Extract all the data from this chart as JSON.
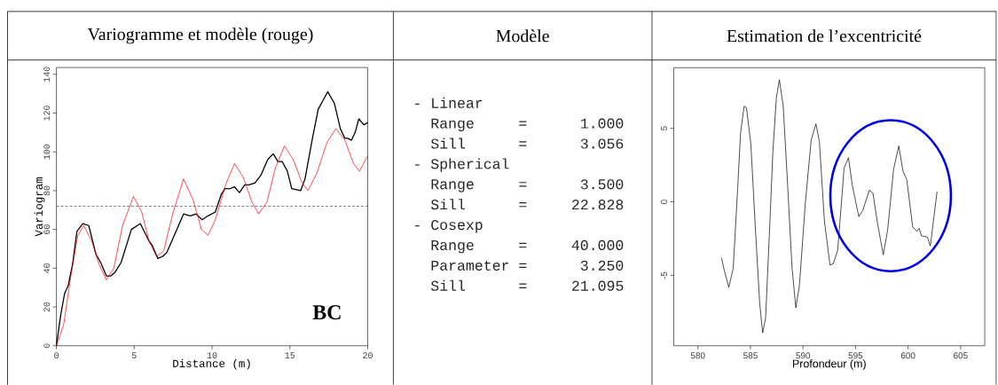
{
  "chart_data": [
    {
      "type": "line",
      "title": "Variogramme et modèle (rouge)",
      "xlabel": "Distance (m)",
      "ylabel": "Variogram",
      "xlim": [
        0,
        20
      ],
      "ylim": [
        0,
        143.5
      ],
      "xticks": [
        0,
        5,
        10,
        15,
        20
      ],
      "yticks": [
        0,
        20,
        40,
        60,
        80,
        100,
        120,
        140
      ],
      "marker": "none",
      "series": [
        {
          "color": "#000000",
          "x": [
            0,
            0.28,
            0.53,
            0.76,
            1.04,
            1.32,
            1.7,
            2.08,
            2.55,
            2.84,
            3.21,
            3.5,
            3.78,
            4.16,
            4.82,
            5.39,
            5.95,
            6.14,
            6.52,
            6.81,
            7.09,
            7.47,
            8.17,
            8.6,
            8.98,
            9.36,
            9.74,
            10.21,
            10.59,
            10.83,
            11.15,
            11.44,
            11.76,
            12.1,
            12.38,
            12.76,
            13.14,
            13.57,
            13.93,
            14.23,
            14.5,
            14.84,
            15.12,
            15.69,
            15.97,
            16.45,
            16.82,
            17.43,
            17.86,
            18.24,
            18.53,
            18.71,
            18.96,
            19.19,
            19.43,
            19.75,
            20
          ],
          "values": [
            0,
            16,
            27,
            31,
            42,
            59,
            63,
            62,
            47,
            43,
            36,
            36,
            38,
            43,
            60,
            63,
            54,
            52,
            45,
            46,
            48,
            55,
            68,
            67,
            68,
            65,
            67,
            69,
            78,
            81,
            81,
            82,
            79,
            83,
            83,
            84,
            88,
            96,
            99,
            95,
            95,
            90,
            81,
            80,
            86,
            107,
            122,
            131,
            125,
            112,
            107,
            107,
            106,
            110,
            117,
            114,
            115
          ]
        },
        {
          "color": "#ff0000",
          "x": [
            0,
            0.47,
            0.95,
            1.38,
            1.76,
            2.27,
            2.74,
            3.21,
            3.69,
            4.25,
            4.95,
            5.48,
            5.95,
            6.43,
            6.9,
            7.47,
            8.17,
            8.79,
            9.32,
            9.74,
            10.21,
            10.87,
            11.44,
            12.0,
            12.57,
            12.99,
            13.52,
            14.08,
            14.65,
            15.22,
            15.78,
            16.16,
            16.73,
            17.39,
            17.96,
            18.53,
            19.09,
            19.47,
            20
          ],
          "values": [
            0,
            11,
            37,
            57,
            62,
            54,
            42,
            34,
            40,
            62,
            77,
            69,
            54,
            46,
            49,
            68,
            86,
            75,
            60,
            57,
            65,
            83,
            94,
            87,
            74,
            68,
            74,
            92,
            103,
            96,
            84,
            80,
            89,
            105,
            112,
            106,
            94,
            90,
            98
          ]
        }
      ],
      "ref_lines": [
        {
          "axis": "y",
          "value": 72,
          "color": "#404040",
          "line_style": "dashed"
        }
      ],
      "annotations": [
        "BC"
      ]
    },
    {
      "type": "other",
      "title": "Modèle",
      "annotations": [
        "- Linear",
        "  Range     =      1.000",
        "  Sill      =      3.056",
        "- Spherical",
        "  Range     =      3.500",
        "  Sill      =     22.828",
        "- Cosexp",
        "  Range     =     40.000",
        "  Parameter =      3.250",
        "  Sill      =     21.095"
      ]
    },
    {
      "type": "line",
      "title": "Estimation de l’excentricité",
      "xlabel": "Profondeur (m)",
      "xlim": [
        577.7,
        607.3
      ],
      "ylim": [
        -9.78,
        9.12
      ],
      "xticks": [
        580,
        585,
        590,
        595,
        600,
        605
      ],
      "yticks": [
        -5,
        0,
        5
      ],
      "marker": "none",
      "series": [
        {
          "color": "#000000",
          "x": [
            582.24,
            582.52,
            582.94,
            583.36,
            583.78,
            584.06,
            584.4,
            584.62,
            585.04,
            585.46,
            585.88,
            586.16,
            586.44,
            586.72,
            587.14,
            587.47,
            587.75,
            588.12,
            588.54,
            588.96,
            589.32,
            589.66,
            590.22,
            590.78,
            591.23,
            591.56,
            592.04,
            592.57,
            592.88,
            593.3,
            593.72,
            593.91,
            594.33,
            594.7,
            595.31,
            595.68,
            596.32,
            596.66,
            597.08,
            597.64,
            598.06,
            598.62,
            599.12,
            599.51,
            599.88,
            600.44,
            600.86,
            601.05,
            601.28,
            601.84,
            602.12,
            602.31,
            602.76
          ],
          "values": [
            -3.8,
            -4.7,
            -5.8,
            -4.5,
            0.9,
            4.7,
            6.5,
            6.4,
            3.9,
            -1.7,
            -6.9,
            -8.9,
            -7.9,
            -3.5,
            3.5,
            7.1,
            8.3,
            6.5,
            1.1,
            -4.5,
            -7.2,
            -5.7,
            -0.1,
            4.2,
            5.3,
            4.1,
            -1.3,
            -4.3,
            -4.2,
            -3.3,
            0.5,
            2.3,
            3.0,
            1.1,
            -1.0,
            -0.6,
            0.8,
            0.6,
            -1.4,
            -3.6,
            -1.9,
            2.2,
            3.8,
            2.1,
            1.5,
            -1.7,
            -2.0,
            -1.8,
            -2.3,
            -2.4,
            -3.0,
            -1.9,
            0.7
          ]
        }
      ]
    }
  ]
}
